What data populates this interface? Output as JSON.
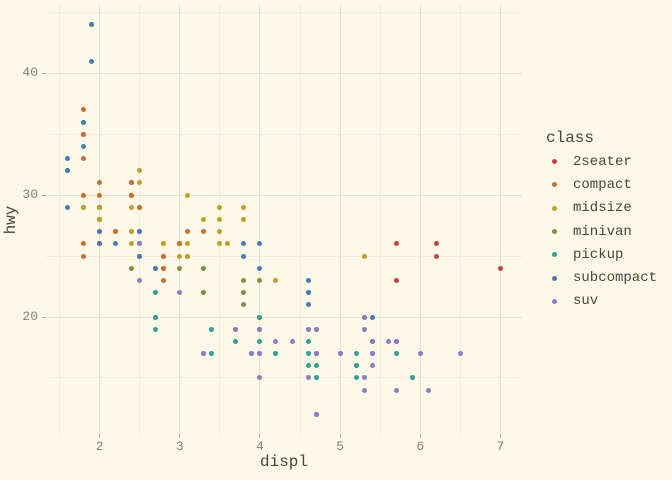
{
  "chart_data": {
    "type": "scatter",
    "title": "",
    "xlabel": "displ",
    "ylabel": "hwy",
    "legend_title": "class",
    "legend_position": "right",
    "grid": true,
    "x_ticks": [
      2,
      3,
      4,
      5,
      6,
      7
    ],
    "x_minor_ticks": [
      1.5,
      2.5,
      3.5,
      4.5,
      5.5,
      6.5
    ],
    "y_ticks": [
      20,
      30,
      40
    ],
    "y_minor_ticks": [
      15,
      25,
      35,
      45
    ],
    "x_range": [
      1.33,
      7.27
    ],
    "y_range": [
      10.4,
      45.6
    ],
    "classes": [
      {
        "name": "2seater",
        "color": "#c04540"
      },
      {
        "name": "compact",
        "color": "#cd6e31"
      },
      {
        "name": "midsize",
        "color": "#c3a02a"
      },
      {
        "name": "minivan",
        "color": "#7d9140"
      },
      {
        "name": "pickup",
        "color": "#34a198"
      },
      {
        "name": "subcompact",
        "color": "#477cb3"
      },
      {
        "name": "suv",
        "color": "#8d7cc2"
      }
    ],
    "points": [
      [
        1.8,
        29,
        1
      ],
      [
        1.8,
        29,
        1
      ],
      [
        2,
        31,
        1
      ],
      [
        2,
        30,
        1
      ],
      [
        2.8,
        26,
        1
      ],
      [
        2.8,
        26,
        1
      ],
      [
        3.1,
        27,
        1
      ],
      [
        1.8,
        26,
        1
      ],
      [
        1.8,
        25,
        1
      ],
      [
        2,
        28,
        1
      ],
      [
        2,
        27,
        1
      ],
      [
        2.8,
        25,
        1
      ],
      [
        2.8,
        25,
        1
      ],
      [
        3.1,
        25,
        1
      ],
      [
        3.1,
        25,
        1
      ],
      [
        2.8,
        24,
        2
      ],
      [
        3.1,
        25,
        2
      ],
      [
        4.2,
        23,
        2
      ],
      [
        5.3,
        20,
        6
      ],
      [
        5.3,
        15,
        6
      ],
      [
        5.3,
        20,
        6
      ],
      [
        5.7,
        17,
        6
      ],
      [
        6,
        17,
        6
      ],
      [
        5.7,
        26,
        0
      ],
      [
        5.7,
        23,
        0
      ],
      [
        6.2,
        26,
        0
      ],
      [
        6.2,
        25,
        0
      ],
      [
        7,
        24,
        0
      ],
      [
        5.3,
        14,
        6
      ],
      [
        5.3,
        19,
        6
      ],
      [
        5.7,
        14,
        6
      ],
      [
        6.5,
        17,
        6
      ],
      [
        2.4,
        27,
        2
      ],
      [
        2.4,
        30,
        2
      ],
      [
        3.1,
        26,
        2
      ],
      [
        3.5,
        29,
        2
      ],
      [
        3.6,
        26,
        2
      ],
      [
        2.4,
        24,
        3
      ],
      [
        3,
        24,
        3
      ],
      [
        3.3,
        22,
        3
      ],
      [
        3.3,
        22,
        3
      ],
      [
        3.3,
        24,
        3
      ],
      [
        3.3,
        24,
        3
      ],
      [
        3.3,
        17,
        3
      ],
      [
        3.8,
        22,
        3
      ],
      [
        3.8,
        21,
        3
      ],
      [
        3.8,
        23,
        3
      ],
      [
        4,
        23,
        3
      ],
      [
        3.7,
        19,
        4
      ],
      [
        3.7,
        18,
        4
      ],
      [
        3.9,
        17,
        4
      ],
      [
        3.9,
        17,
        4
      ],
      [
        4.7,
        19,
        4
      ],
      [
        4.7,
        19,
        4
      ],
      [
        4.7,
        12,
        4
      ],
      [
        5.2,
        17,
        4
      ],
      [
        5.2,
        15,
        4
      ],
      [
        3.9,
        17,
        6
      ],
      [
        4.7,
        17,
        6
      ],
      [
        4.7,
        12,
        6
      ],
      [
        4.7,
        17,
        6
      ],
      [
        5.2,
        16,
        6
      ],
      [
        5.7,
        18,
        6
      ],
      [
        5.9,
        15,
        6
      ],
      [
        4.7,
        16,
        4
      ],
      [
        4.7,
        17,
        4
      ],
      [
        4.7,
        15,
        4
      ],
      [
        4.7,
        17,
        4
      ],
      [
        4.7,
        15,
        4
      ],
      [
        4.7,
        17,
        4
      ],
      [
        5.2,
        16,
        4
      ],
      [
        5.2,
        16,
        4
      ],
      [
        5.7,
        17,
        4
      ],
      [
        5.9,
        15,
        4
      ],
      [
        4.6,
        17,
        6
      ],
      [
        5.4,
        17,
        6
      ],
      [
        5.4,
        18,
        6
      ],
      [
        4,
        17,
        6
      ],
      [
        4,
        19,
        6
      ],
      [
        4,
        17,
        6
      ],
      [
        4,
        19,
        6
      ],
      [
        4.6,
        19,
        6
      ],
      [
        5,
        17,
        6
      ],
      [
        4.2,
        17,
        4
      ],
      [
        4.2,
        17,
        4
      ],
      [
        4.6,
        16,
        4
      ],
      [
        4.6,
        18,
        4
      ],
      [
        4.6,
        17,
        4
      ],
      [
        5.4,
        18,
        4
      ],
      [
        5.4,
        17,
        4
      ],
      [
        3.8,
        26,
        5
      ],
      [
        3.8,
        25,
        5
      ],
      [
        4,
        26,
        5
      ],
      [
        4,
        24,
        5
      ],
      [
        4.6,
        21,
        5
      ],
      [
        4.6,
        22,
        5
      ],
      [
        4.6,
        23,
        5
      ],
      [
        4.6,
        22,
        5
      ],
      [
        5.4,
        20,
        5
      ],
      [
        1.6,
        33,
        5
      ],
      [
        1.6,
        32,
        5
      ],
      [
        1.6,
        32,
        5
      ],
      [
        1.6,
        29,
        5
      ],
      [
        1.6,
        32,
        5
      ],
      [
        1.8,
        34,
        5
      ],
      [
        1.8,
        36,
        5
      ],
      [
        1.8,
        36,
        5
      ],
      [
        2,
        29,
        5
      ],
      [
        2.4,
        26,
        2
      ],
      [
        2.4,
        27,
        2
      ],
      [
        2.4,
        30,
        2
      ],
      [
        2.4,
        31,
        2
      ],
      [
        2.5,
        26,
        2
      ],
      [
        2.5,
        26,
        2
      ],
      [
        3.3,
        28,
        2
      ],
      [
        2,
        26,
        5
      ],
      [
        2,
        27,
        5
      ],
      [
        2,
        26,
        5
      ],
      [
        2,
        26,
        5
      ],
      [
        2.7,
        24,
        5
      ],
      [
        2.7,
        24,
        5
      ],
      [
        2.7,
        24,
        5
      ],
      [
        3,
        22,
        6
      ],
      [
        3.7,
        19,
        6
      ],
      [
        4,
        20,
        6
      ],
      [
        4.7,
        17,
        6
      ],
      [
        4.7,
        12,
        6
      ],
      [
        4.7,
        19,
        6
      ],
      [
        5.7,
        18,
        6
      ],
      [
        6.1,
        14,
        6
      ],
      [
        4,
        15,
        6
      ],
      [
        4.2,
        18,
        6
      ],
      [
        4.4,
        18,
        6
      ],
      [
        4.6,
        15,
        6
      ],
      [
        5.4,
        17,
        6
      ],
      [
        5.4,
        16,
        6
      ],
      [
        5.4,
        18,
        6
      ],
      [
        4,
        17,
        6
      ],
      [
        4,
        19,
        6
      ],
      [
        4.6,
        19,
        6
      ],
      [
        5,
        17,
        6
      ],
      [
        2.4,
        29,
        2
      ],
      [
        2.4,
        27,
        2
      ],
      [
        2.5,
        31,
        2
      ],
      [
        2.5,
        32,
        2
      ],
      [
        3.5,
        27,
        2
      ],
      [
        3.5,
        26,
        2
      ],
      [
        3,
        26,
        2
      ],
      [
        3,
        25,
        2
      ],
      [
        3.5,
        26,
        2
      ],
      [
        3.3,
        17,
        6
      ],
      [
        3.3,
        17,
        6
      ],
      [
        4,
        20,
        6
      ],
      [
        5.6,
        18,
        6
      ],
      [
        3.1,
        30,
        2
      ],
      [
        3.8,
        28,
        2
      ],
      [
        3.8,
        29,
        2
      ],
      [
        3.8,
        28,
        2
      ],
      [
        5.3,
        25,
        2
      ],
      [
        2.5,
        26,
        6
      ],
      [
        2.5,
        25,
        6
      ],
      [
        2.5,
        27,
        6
      ],
      [
        2.5,
        25,
        6
      ],
      [
        2.5,
        26,
        6
      ],
      [
        2.5,
        23,
        6
      ],
      [
        2.2,
        26,
        5
      ],
      [
        2.2,
        27,
        5
      ],
      [
        2.5,
        25,
        5
      ],
      [
        2.5,
        27,
        5
      ],
      [
        2.7,
        20,
        6
      ],
      [
        2.7,
        20,
        6
      ],
      [
        3.4,
        19,
        6
      ],
      [
        3.4,
        17,
        6
      ],
      [
        4,
        20,
        6
      ],
      [
        4.7,
        17,
        6
      ],
      [
        2.2,
        27,
        2
      ],
      [
        2.2,
        27,
        2
      ],
      [
        2.4,
        30,
        2
      ],
      [
        2.4,
        31,
        2
      ],
      [
        3,
        26,
        2
      ],
      [
        3,
        26,
        2
      ],
      [
        3.5,
        28,
        2
      ],
      [
        2.2,
        27,
        1
      ],
      [
        2.4,
        30,
        1
      ],
      [
        2.4,
        31,
        1
      ],
      [
        3,
        26,
        1
      ],
      [
        3,
        26,
        1
      ],
      [
        3.3,
        27,
        1
      ],
      [
        1.8,
        30,
        1
      ],
      [
        1.8,
        33,
        1
      ],
      [
        1.8,
        35,
        1
      ],
      [
        1.8,
        35,
        1
      ],
      [
        1.8,
        37,
        1
      ],
      [
        4.7,
        17,
        6
      ],
      [
        5.7,
        18,
        6
      ],
      [
        2.7,
        19,
        4
      ],
      [
        2.7,
        20,
        4
      ],
      [
        2.7,
        22,
        4
      ],
      [
        3.4,
        17,
        4
      ],
      [
        3.4,
        19,
        4
      ],
      [
        4,
        18,
        4
      ],
      [
        4,
        20,
        4
      ],
      [
        2,
        26,
        1
      ],
      [
        2,
        29,
        1
      ],
      [
        2,
        28,
        1
      ],
      [
        2,
        29,
        1
      ],
      [
        2.8,
        24,
        1
      ],
      [
        1.9,
        44,
        1
      ],
      [
        2,
        29,
        1
      ],
      [
        2,
        26,
        1
      ],
      [
        2,
        29,
        1
      ],
      [
        2,
        28,
        1
      ],
      [
        2.5,
        29,
        1
      ],
      [
        2.5,
        29,
        1
      ],
      [
        2.8,
        24,
        1
      ],
      [
        2.8,
        23,
        1
      ],
      [
        1.9,
        44,
        5
      ],
      [
        1.9,
        41,
        5
      ],
      [
        2,
        29,
        5
      ],
      [
        2,
        26,
        5
      ],
      [
        2,
        28,
        5
      ],
      [
        1.8,
        29,
        2
      ],
      [
        1.8,
        29,
        2
      ],
      [
        2,
        28,
        2
      ],
      [
        2,
        29,
        2
      ],
      [
        2.8,
        26,
        2
      ],
      [
        2.8,
        26,
        2
      ],
      [
        3.6,
        26,
        2
      ]
    ]
  },
  "theme": {
    "background": "#fdf8e8",
    "grid_major": "#e5e0d1",
    "grid_minor": "#efebdd",
    "tick_mark": "#b3ada0",
    "tick_label_color": "#868073",
    "text_color": "#4a453c"
  }
}
